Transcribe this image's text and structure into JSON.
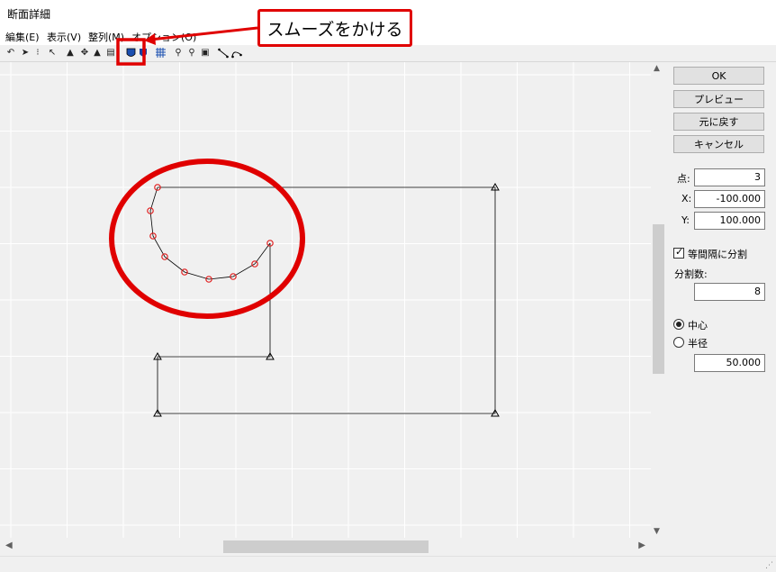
{
  "window": {
    "title": "断面詳細"
  },
  "menu": [
    "編集(E)",
    "表示(V)",
    "整列(M)",
    "オプション(O)"
  ],
  "toolbar": {
    "buttons": [
      "undo-icon",
      "pointer-icon",
      "point-select-icon",
      "arrow-select-icon",
      "mirror-icon",
      "rotate-icon",
      "flip-icon",
      "delete-icon",
      "smooth-icon",
      "shield-icon",
      "grid-icon",
      "zoom-in-icon",
      "zoom-out-icon",
      "fit-icon",
      "line-icon",
      "arc-icon"
    ]
  },
  "callout": {
    "text": "スムーズをかける"
  },
  "panel": {
    "ok": "OK",
    "preview": "プレビュー",
    "undo": "元に戻す",
    "cancel": "キャンセル",
    "point_label": "点:",
    "point_value": "3",
    "x_label": "X:",
    "x_value": "-100.000",
    "y_label": "Y:",
    "y_value": "100.000",
    "equal_split_label": "等間隔に分割",
    "equal_split_checked": true,
    "divisions_label": "分割数:",
    "divisions_value": "8",
    "center_label": "中心",
    "radius_label": "半径",
    "selected_mode": "中心",
    "radius_value": "50.000"
  },
  "colors": {
    "highlight": "#e00000",
    "point": "#e02020",
    "line": "#000000",
    "grid": "#ffffff"
  }
}
